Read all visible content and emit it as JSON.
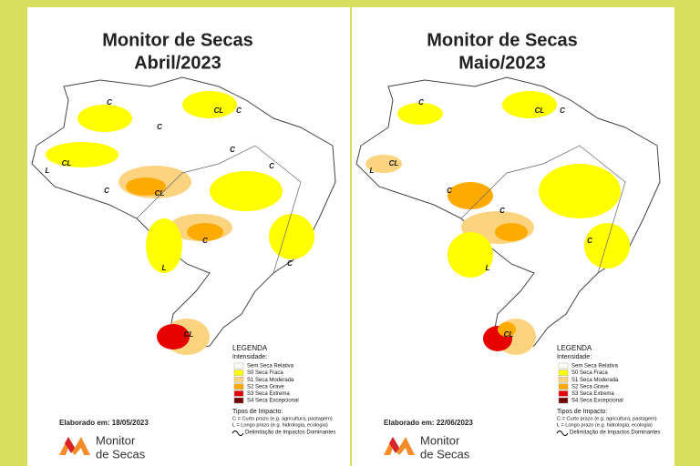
{
  "panels": [
    {
      "title": "Monitor de Secas",
      "period": "Abril/2023",
      "date": "Elaborado em: 18/05/2023",
      "map_labels": [
        "C",
        "CL",
        "C",
        "C",
        "CL",
        "L",
        "C",
        "CL",
        "C",
        "C",
        "L",
        "CL",
        "C",
        "C"
      ]
    },
    {
      "title": "Monitor de Secas",
      "period": "Maio/2023",
      "date": "Elaborado em: 22/06/2023",
      "map_labels": [
        "C",
        "CL",
        "C",
        "CL",
        "L",
        "C",
        "C",
        "L",
        "CL",
        "C"
      ]
    }
  ],
  "legend": {
    "title": "LEGENDA",
    "intensity_heading": "Intensidade:",
    "levels": [
      {
        "label": "Sem Seca Relativa",
        "color": "#ffffff"
      },
      {
        "label": "S0 Seca Fraca",
        "color": "#ffff00"
      },
      {
        "label": "S1 Seca Moderada",
        "color": "#fcd37f"
      },
      {
        "label": "S2 Seca Grave",
        "color": "#ffaa00"
      },
      {
        "label": "S3 Seca Extrema",
        "color": "#e60000"
      },
      {
        "label": "S4 Seca Excepcional",
        "color": "#730000"
      }
    ],
    "impact_heading": "Tipos de Impacto:",
    "impact_types": [
      "C = Curto prazo (e.g. agricultura, pastagem)",
      "L = Longo prazo (e.g. hidrologia, ecologia)"
    ],
    "boundary": "Delimitação de Impactos Dominantes"
  },
  "logo": {
    "line1": "Monitor",
    "line2": "de Secas"
  }
}
